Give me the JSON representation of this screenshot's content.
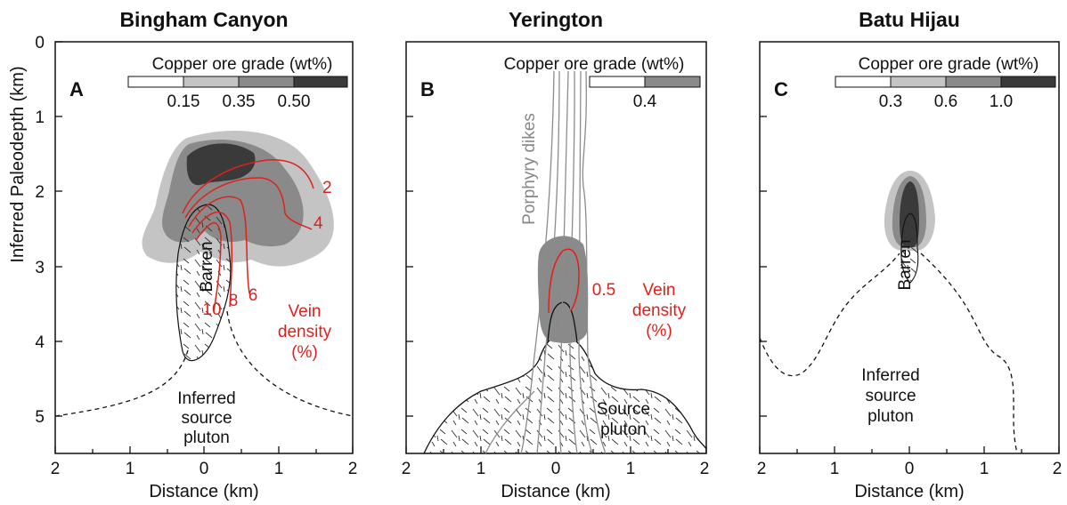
{
  "panels": [
    {
      "title": "Bingham Canyon",
      "letter": "A",
      "legend_title": "Copper ore grade (wt%)",
      "legend_ticks": [
        "0.15",
        "0.35",
        "0.50"
      ],
      "labels": {
        "barren": "Barren",
        "vein_density": [
          "Vein",
          "density",
          "(%)"
        ],
        "pluton": [
          "Inferred",
          "source",
          "pluton"
        ],
        "contours": [
          "2",
          "4",
          "6",
          "8",
          "10"
        ]
      }
    },
    {
      "title": "Yerington",
      "letter": "B",
      "legend_title": "Copper ore grade (wt%)",
      "legend_ticks": [
        "0.4"
      ],
      "labels": {
        "dikes": "Porphyry dikes",
        "contour": "0.5",
        "vein_density": [
          "Vein",
          "density",
          "(%)"
        ],
        "pluton": [
          "Source",
          "pluton"
        ]
      }
    },
    {
      "title": "Batu Hijau",
      "letter": "C",
      "legend_title": "Copper ore grade (wt%)",
      "legend_ticks": [
        "0.3",
        "0.6",
        "1.0"
      ],
      "labels": {
        "barren": "Barren",
        "pluton": [
          "Inferred",
          "source",
          "pluton"
        ]
      }
    }
  ],
  "axes": {
    "y_label": "Inferred Paleodepth (km)",
    "y_ticks": [
      "0",
      "1",
      "2",
      "3",
      "4",
      "5"
    ],
    "x_label": "Distance (km)",
    "x_ticks": [
      "2",
      "1",
      "0",
      "1",
      "2"
    ]
  },
  "colors": {
    "grade_1": "#c4c4c4",
    "grade_2": "#8a8a8a",
    "grade_3": "#3a3a3a",
    "vein_contour": "#e0211b",
    "dikes": "#8c8c8c"
  }
}
